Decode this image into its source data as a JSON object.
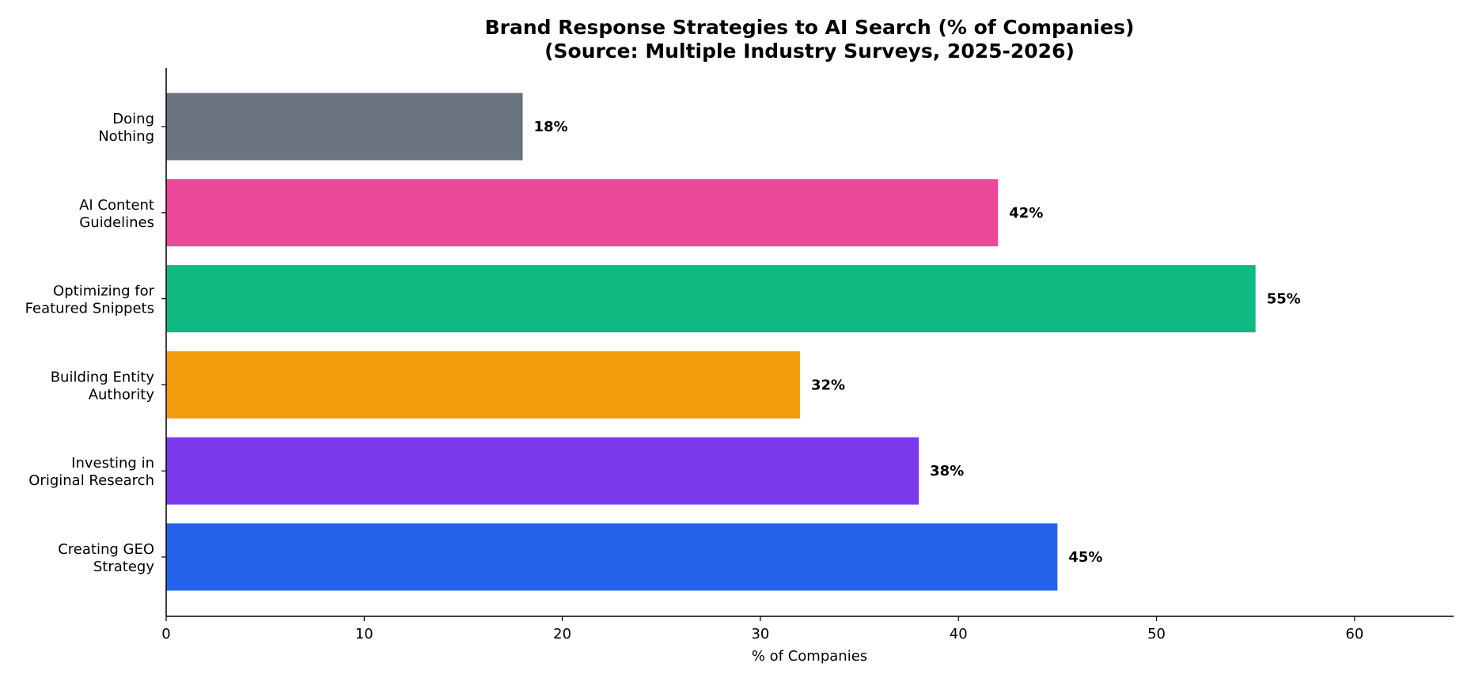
{
  "chart_data": {
    "type": "bar",
    "orientation": "horizontal",
    "title": "Brand Response Strategies to AI Search (% of Companies)",
    "subtitle": "(Source: Multiple Industry Surveys, 2025-2026)",
    "xlabel": "% of Companies",
    "ylabel": "",
    "xlim": [
      0,
      65
    ],
    "xticks": [
      0,
      10,
      20,
      30,
      40,
      50,
      60
    ],
    "grid": false,
    "legend": "none",
    "categories": [
      [
        "Creating GEO",
        "Strategy"
      ],
      [
        "Investing in",
        "Original Research"
      ],
      [
        "Building Entity",
        "Authority"
      ],
      [
        "Optimizing for",
        "Featured Snippets"
      ],
      [
        "AI Content",
        "Guidelines"
      ],
      [
        "Doing",
        "Nothing"
      ]
    ],
    "values": [
      45,
      38,
      32,
      55,
      42,
      18
    ],
    "value_labels": [
      "45%",
      "38%",
      "32%",
      "55%",
      "42%",
      "18%"
    ],
    "colors": [
      "#2563eb",
      "#7c3aed",
      "#f39c0b",
      "#10b981",
      "#ec4899",
      "#6b7280"
    ]
  }
}
